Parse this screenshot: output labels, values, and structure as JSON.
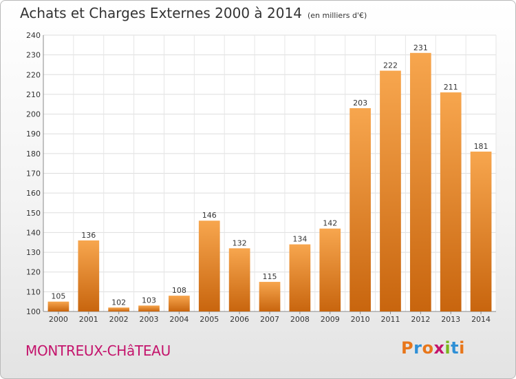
{
  "header": {
    "title": "Achats et Charges Externes 2000 à 2014",
    "unit": "(en milliers d'€)"
  },
  "footer": {
    "commune": "MONTREUX-CHâTEAU",
    "logo_text": "Proxiti",
    "logo_colors": [
      "#e8761a",
      "#2e8fd6",
      "#e8761a",
      "#c4146c",
      "#7ab51d",
      "#2e8fd6",
      "#e8761a"
    ]
  },
  "chart_data": {
    "type": "bar",
    "title": "Achats et Charges Externes 2000 à 2014",
    "subtitle": "(en milliers d'€)",
    "categories": [
      "2000",
      "2001",
      "2002",
      "2003",
      "2004",
      "2005",
      "2006",
      "2007",
      "2008",
      "2009",
      "2010",
      "2011",
      "2012",
      "2013",
      "2014"
    ],
    "values": [
      105,
      136,
      102,
      103,
      108,
      146,
      132,
      115,
      134,
      142,
      203,
      222,
      231,
      211,
      181
    ],
    "ylim": [
      100,
      240
    ],
    "yticks": [
      100,
      110,
      120,
      130,
      140,
      150,
      160,
      170,
      180,
      190,
      200,
      210,
      220,
      230,
      240
    ],
    "grid": true,
    "bar_color": "#f08a24",
    "bar_color_light": "#f7a64e",
    "bar_color_dark": "#c8650e"
  }
}
